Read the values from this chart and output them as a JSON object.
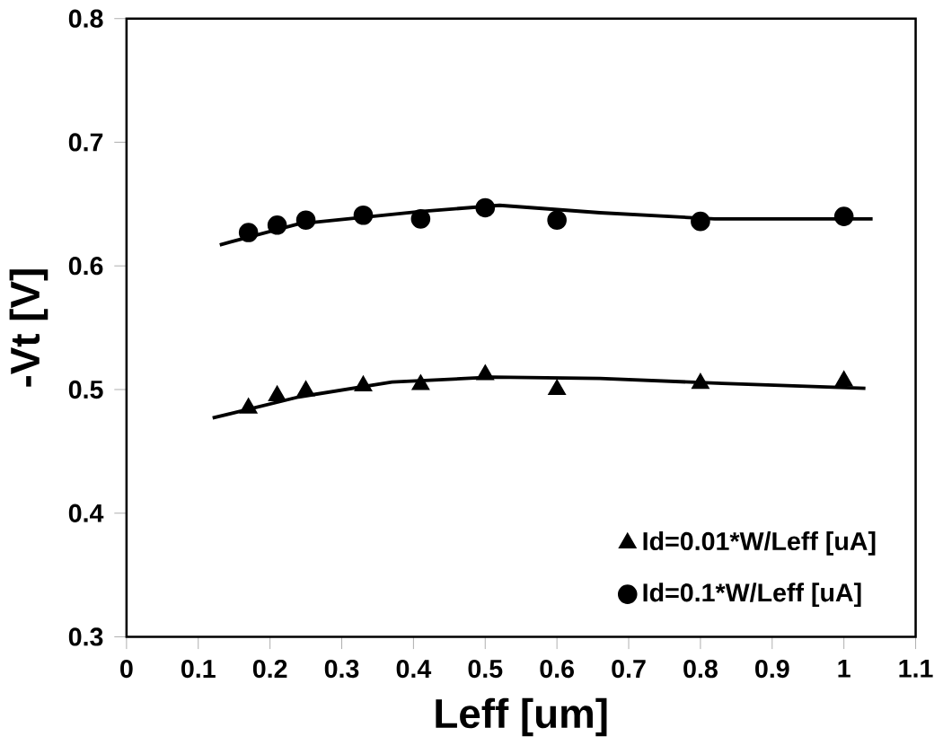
{
  "chart_data": {
    "type": "scatter",
    "xlabel": "Leff [um]",
    "ylabel": "-Vt [V]",
    "xlim": [
      0,
      1.1
    ],
    "ylim": [
      0.3,
      0.8
    ],
    "xticks": [
      0,
      0.1,
      0.2,
      0.3,
      0.4,
      0.5,
      0.6,
      0.7,
      0.8,
      0.9,
      1,
      1.1
    ],
    "yticks": [
      0.3,
      0.4,
      0.5,
      0.6,
      0.7,
      0.8
    ],
    "grid": false,
    "legend": "bottom right",
    "series": [
      {
        "name": "Id=0.01*W/Leff [uA]",
        "color": "#000000",
        "marker": "triangle",
        "x": [
          0.17,
          0.21,
          0.25,
          0.33,
          0.41,
          0.5,
          0.6,
          0.8,
          1.0
        ],
        "values": [
          0.485,
          0.495,
          0.499,
          0.503,
          0.504,
          0.512,
          0.5,
          0.505,
          0.507
        ]
      },
      {
        "name": "Id=0.1*W/Leff [uA]",
        "color": "#000000",
        "marker": "circle",
        "x": [
          0.17,
          0.21,
          0.25,
          0.33,
          0.41,
          0.5,
          0.6,
          0.8,
          1.0
        ],
        "values": [
          0.627,
          0.633,
          0.637,
          0.641,
          0.638,
          0.647,
          0.637,
          0.636,
          0.64
        ]
      },
      {
        "type": "line",
        "color": "#000000",
        "marker": "none",
        "line_style": "solid",
        "x": [
          0.12,
          0.24,
          0.37,
          0.51,
          0.66,
          0.83,
          1.03
        ],
        "values": [
          0.477,
          0.494,
          0.506,
          0.51,
          0.509,
          0.505,
          0.501
        ]
      },
      {
        "type": "line",
        "color": "#000000",
        "marker": "none",
        "line_style": "solid",
        "x": [
          0.13,
          0.24,
          0.41,
          0.52,
          0.66,
          0.82,
          1.04
        ],
        "values": [
          0.617,
          0.634,
          0.644,
          0.649,
          0.643,
          0.638,
          0.638
        ]
      }
    ]
  }
}
